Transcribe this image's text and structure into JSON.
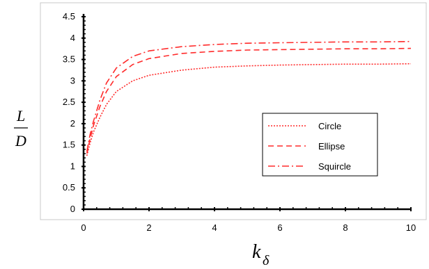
{
  "chart_data": {
    "type": "line",
    "title": "",
    "ylabel": {
      "numerator": "L",
      "denominator": "D"
    },
    "xlabel": {
      "main": "k",
      "subscript": "δ"
    },
    "xlim": [
      0,
      10
    ],
    "ylim": [
      0,
      4.5
    ],
    "xticks": [
      "0",
      "2",
      "4",
      "6",
      "8",
      "10"
    ],
    "yticks": [
      "0",
      "0.5",
      "1",
      "1.5",
      "2",
      "2.5",
      "3",
      "3.5",
      "4",
      "4.5"
    ],
    "grid": false,
    "legend_position": "center-right",
    "series": [
      {
        "name": "Circle",
        "style": "dotted",
        "color": "#ff2a2a",
        "x": [
          0.1,
          0.2,
          0.3,
          0.5,
          0.7,
          1,
          1.5,
          2,
          3,
          4,
          5,
          6,
          7,
          8,
          9,
          10
        ],
        "y": [
          1.25,
          1.55,
          1.8,
          2.15,
          2.45,
          2.75,
          3.0,
          3.13,
          3.25,
          3.32,
          3.35,
          3.37,
          3.38,
          3.39,
          3.39,
          3.4
        ]
      },
      {
        "name": "Ellipse",
        "style": "dashed",
        "color": "#ff2a2a",
        "x": [
          0.1,
          0.2,
          0.3,
          0.5,
          0.7,
          1,
          1.5,
          2,
          3,
          4,
          5,
          6,
          7,
          8,
          9,
          10
        ],
        "y": [
          1.3,
          1.65,
          1.95,
          2.4,
          2.75,
          3.1,
          3.38,
          3.52,
          3.64,
          3.69,
          3.72,
          3.73,
          3.74,
          3.75,
          3.75,
          3.76
        ]
      },
      {
        "name": "Squircle",
        "style": "dashdot",
        "color": "#ff2a2a",
        "x": [
          0.1,
          0.2,
          0.3,
          0.5,
          0.7,
          1,
          1.5,
          2,
          3,
          4,
          5,
          6,
          7,
          8,
          9,
          10
        ],
        "y": [
          1.35,
          1.75,
          2.05,
          2.55,
          2.95,
          3.3,
          3.57,
          3.7,
          3.8,
          3.85,
          3.88,
          3.89,
          3.9,
          3.91,
          3.91,
          3.92
        ]
      }
    ]
  }
}
